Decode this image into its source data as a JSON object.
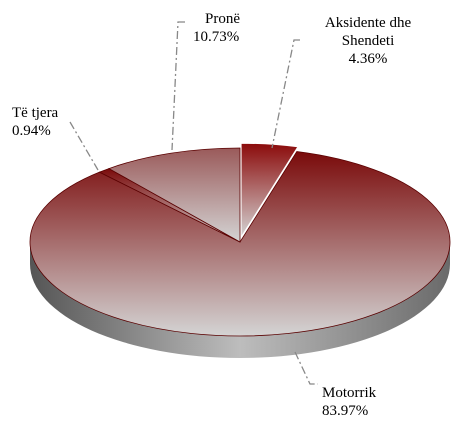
{
  "chart_data": {
    "type": "pie",
    "categories": [
      "Aksidente dhe Shendeti",
      "Motorrik",
      "Të tjera",
      "Pronë"
    ],
    "values": [
      4.36,
      83.97,
      0.94,
      10.73
    ],
    "value_labels": [
      "4.36%",
      "83.97%",
      "0.94%",
      "10.73%"
    ],
    "colors": [
      "#8b0a0a",
      "#7a0a0a",
      "#7a0a0a",
      "#9a5a5a"
    ]
  }
}
